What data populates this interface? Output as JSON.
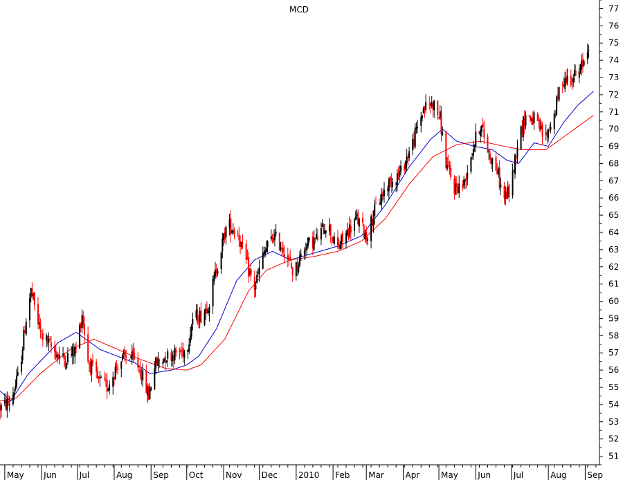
{
  "chart_data": {
    "type": "candlestick",
    "title": "MCD",
    "xlabel": "",
    "ylabel": "",
    "ylim": [
      50.5,
      77.5
    ],
    "y_ticks": [
      51,
      52,
      53,
      54,
      55,
      56,
      57,
      58,
      59,
      60,
      61,
      62,
      63,
      64,
      65,
      66,
      67,
      68,
      69,
      70,
      71,
      72,
      73,
      74,
      75,
      76,
      77
    ],
    "x_tick_labels": [
      "May",
      "Jun",
      "Jul",
      "Aug",
      "Sep",
      "Oct",
      "Nov",
      "Dec",
      "2010",
      "Feb",
      "Mar",
      "Apr",
      "May",
      "Jun",
      "Jul",
      "Aug",
      "Sep"
    ],
    "x_tick_days": [
      0,
      31,
      61,
      92,
      123,
      153,
      184,
      214,
      245,
      276,
      304,
      335,
      365,
      396,
      426,
      457,
      488
    ],
    "x_range_days": [
      -4,
      500
    ],
    "grid": false,
    "legend": "none",
    "axis_position": "right",
    "price_anchors": [
      {
        "day": -4,
        "price": 53.8
      },
      {
        "day": 5,
        "price": 54.2
      },
      {
        "day": 12,
        "price": 55.8
      },
      {
        "day": 18,
        "price": 59.0
      },
      {
        "day": 22,
        "price": 60.6
      },
      {
        "day": 30,
        "price": 58.2
      },
      {
        "day": 40,
        "price": 57.2
      },
      {
        "day": 50,
        "price": 56.6
      },
      {
        "day": 60,
        "price": 57.2
      },
      {
        "day": 65,
        "price": 59.3
      },
      {
        "day": 70,
        "price": 56.6
      },
      {
        "day": 78,
        "price": 55.4
      },
      {
        "day": 86,
        "price": 55.0
      },
      {
        "day": 96,
        "price": 56.5
      },
      {
        "day": 105,
        "price": 56.8
      },
      {
        "day": 113,
        "price": 56.2
      },
      {
        "day": 121,
        "price": 54.5
      },
      {
        "day": 126,
        "price": 56.3
      },
      {
        "day": 135,
        "price": 56.8
      },
      {
        "day": 145,
        "price": 57.0
      },
      {
        "day": 153,
        "price": 57.2
      },
      {
        "day": 158,
        "price": 59.0
      },
      {
        "day": 166,
        "price": 59.2
      },
      {
        "day": 172,
        "price": 60.0
      },
      {
        "day": 180,
        "price": 62.5
      },
      {
        "day": 187,
        "price": 64.5
      },
      {
        "day": 196,
        "price": 64.0
      },
      {
        "day": 204,
        "price": 62.0
      },
      {
        "day": 210,
        "price": 60.8
      },
      {
        "day": 218,
        "price": 62.8
      },
      {
        "day": 226,
        "price": 63.8
      },
      {
        "day": 235,
        "price": 63.0
      },
      {
        "day": 243,
        "price": 61.6
      },
      {
        "day": 252,
        "price": 63.2
      },
      {
        "day": 262,
        "price": 63.6
      },
      {
        "day": 271,
        "price": 64.6
      },
      {
        "day": 279,
        "price": 63.0
      },
      {
        "day": 288,
        "price": 64.0
      },
      {
        "day": 296,
        "price": 64.8
      },
      {
        "day": 304,
        "price": 63.8
      },
      {
        "day": 312,
        "price": 65.4
      },
      {
        "day": 322,
        "price": 66.8
      },
      {
        "day": 333,
        "price": 67.5
      },
      {
        "day": 343,
        "price": 69.2
      },
      {
        "day": 352,
        "price": 71.2
      },
      {
        "day": 360,
        "price": 71.5
      },
      {
        "day": 366,
        "price": 70.6
      },
      {
        "day": 371,
        "price": 68.0
      },
      {
        "day": 378,
        "price": 66.6
      },
      {
        "day": 386,
        "price": 66.8
      },
      {
        "day": 393,
        "price": 68.8
      },
      {
        "day": 400,
        "price": 70.3
      },
      {
        "day": 407,
        "price": 68.6
      },
      {
        "day": 414,
        "price": 67.6
      },
      {
        "day": 419,
        "price": 66.0
      },
      {
        "day": 425,
        "price": 66.4
      },
      {
        "day": 431,
        "price": 69.2
      },
      {
        "day": 438,
        "price": 70.8
      },
      {
        "day": 446,
        "price": 70.5
      },
      {
        "day": 454,
        "price": 69.4
      },
      {
        "day": 462,
        "price": 70.8
      },
      {
        "day": 468,
        "price": 72.8
      },
      {
        "day": 476,
        "price": 73.0
      },
      {
        "day": 483,
        "price": 73.2
      },
      {
        "day": 487,
        "price": 74.0
      },
      {
        "day": 491,
        "price": 75.0
      }
    ],
    "moving_averages": [
      {
        "color": "#0000cc",
        "anchors": [
          {
            "day": -4,
            "price": 54.8
          },
          {
            "day": 5,
            "price": 54.2
          },
          {
            "day": 20,
            "price": 55.8
          },
          {
            "day": 45,
            "price": 57.6
          },
          {
            "day": 60,
            "price": 58.2
          },
          {
            "day": 80,
            "price": 57.2
          },
          {
            "day": 95,
            "price": 56.8
          },
          {
            "day": 110,
            "price": 56.4
          },
          {
            "day": 122,
            "price": 55.8
          },
          {
            "day": 140,
            "price": 56.0
          },
          {
            "day": 153,
            "price": 56.3
          },
          {
            "day": 163,
            "price": 56.8
          },
          {
            "day": 178,
            "price": 58.4
          },
          {
            "day": 195,
            "price": 61.2
          },
          {
            "day": 210,
            "price": 62.4
          },
          {
            "day": 225,
            "price": 62.9
          },
          {
            "day": 240,
            "price": 62.4
          },
          {
            "day": 260,
            "price": 62.8
          },
          {
            "day": 280,
            "price": 63.2
          },
          {
            "day": 300,
            "price": 63.8
          },
          {
            "day": 320,
            "price": 65.6
          },
          {
            "day": 340,
            "price": 67.8
          },
          {
            "day": 358,
            "price": 69.4
          },
          {
            "day": 368,
            "price": 70.0
          },
          {
            "day": 380,
            "price": 69.3
          },
          {
            "day": 395,
            "price": 69.0
          },
          {
            "day": 410,
            "price": 68.8
          },
          {
            "day": 422,
            "price": 68.2
          },
          {
            "day": 432,
            "price": 68.0
          },
          {
            "day": 445,
            "price": 69.2
          },
          {
            "day": 457,
            "price": 69.0
          },
          {
            "day": 470,
            "price": 70.4
          },
          {
            "day": 482,
            "price": 71.4
          },
          {
            "day": 495,
            "price": 72.2
          }
        ]
      },
      {
        "color": "#ff0000",
        "anchors": [
          {
            "day": -4,
            "price": 54.2
          },
          {
            "day": 10,
            "price": 54.4
          },
          {
            "day": 30,
            "price": 55.8
          },
          {
            "day": 55,
            "price": 57.2
          },
          {
            "day": 75,
            "price": 57.8
          },
          {
            "day": 95,
            "price": 57.2
          },
          {
            "day": 115,
            "price": 56.6
          },
          {
            "day": 135,
            "price": 56.1
          },
          {
            "day": 153,
            "price": 56.0
          },
          {
            "day": 165,
            "price": 56.3
          },
          {
            "day": 185,
            "price": 57.8
          },
          {
            "day": 205,
            "price": 60.6
          },
          {
            "day": 220,
            "price": 61.8
          },
          {
            "day": 240,
            "price": 62.4
          },
          {
            "day": 260,
            "price": 62.6
          },
          {
            "day": 280,
            "price": 62.9
          },
          {
            "day": 300,
            "price": 63.5
          },
          {
            "day": 320,
            "price": 64.8
          },
          {
            "day": 340,
            "price": 66.8
          },
          {
            "day": 360,
            "price": 68.4
          },
          {
            "day": 380,
            "price": 69.1
          },
          {
            "day": 400,
            "price": 69.3
          },
          {
            "day": 420,
            "price": 69.0
          },
          {
            "day": 435,
            "price": 68.8
          },
          {
            "day": 455,
            "price": 68.8
          },
          {
            "day": 475,
            "price": 69.8
          },
          {
            "day": 495,
            "price": 70.8
          }
        ]
      }
    ],
    "bar_colors": {
      "up": "#000000",
      "down": "#ff0000"
    }
  }
}
